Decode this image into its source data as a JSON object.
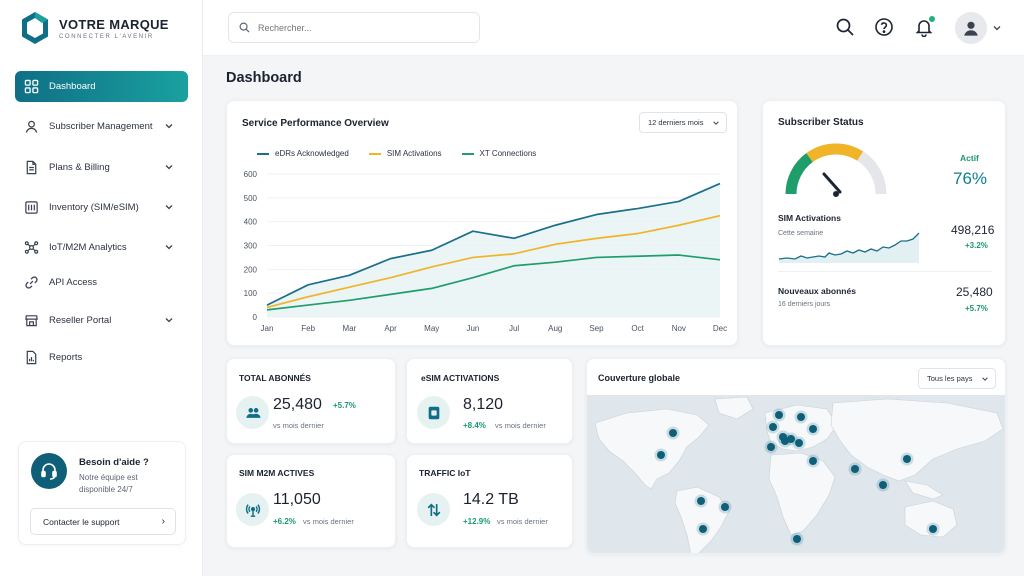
{
  "brand": {
    "name": "VOTRE MARQUE",
    "tagline": "CONNECTER L'AVENIR",
    "color": "#0f6f86"
  },
  "nav": {
    "items": [
      {
        "label": "Dashboard",
        "icon": "grid-icon",
        "active": true,
        "chevron": false
      },
      {
        "label": "Subscriber Management",
        "icon": "user-icon",
        "chevron": true
      },
      {
        "label": "Plans & Billing",
        "icon": "document-icon",
        "chevron": true
      },
      {
        "label": "Inventory (SIM/eSIM)",
        "icon": "sim-card-icon",
        "chevron": true
      },
      {
        "label": "IoT/M2M Analytics",
        "icon": "network-icon",
        "chevron": true
      },
      {
        "label": "API Access",
        "icon": "link-icon",
        "chevron": false
      },
      {
        "label": "Reseller Portal",
        "icon": "storefront-icon",
        "chevron": true
      },
      {
        "label": "Reports",
        "icon": "report-icon",
        "chevron": false
      }
    ]
  },
  "help": {
    "title": "Besoin d'aide ?",
    "text": "Notre équipe est disponible 24/7",
    "button": "Contacter le support"
  },
  "search": {
    "placeholder": "Rechercher..."
  },
  "page": {
    "title": "Dashboard"
  },
  "performance": {
    "title": "Service Performance Overview",
    "period": "12 derniers mois",
    "chart_data": {
      "type": "line",
      "title": "",
      "categories": [
        "Jan",
        "Feb",
        "Mar",
        "Apr",
        "May",
        "Jun",
        "Jul",
        "Aug",
        "Sep",
        "Oct",
        "Nov",
        "Dec"
      ],
      "ylim": [
        0,
        600
      ],
      "yticks": [
        0,
        100,
        200,
        300,
        400,
        500,
        600
      ],
      "grid": true,
      "legend": "top",
      "series": [
        {
          "name": "eDRs Acknowledged",
          "color": "#1a6f8a",
          "values": [
            50,
            135,
            175,
            245,
            280,
            360,
            330,
            385,
            430,
            455,
            485,
            560
          ]
        },
        {
          "name": "SIM Activations",
          "color": "#f0b429",
          "values": [
            40,
            85,
            125,
            165,
            210,
            250,
            265,
            305,
            330,
            350,
            385,
            425
          ]
        },
        {
          "name": "XT Connections",
          "color": "#1f9d6b",
          "values": [
            30,
            50,
            70,
            95,
            120,
            165,
            215,
            230,
            250,
            255,
            260,
            240
          ]
        }
      ]
    }
  },
  "subscriber_status": {
    "title": "Subscriber Status",
    "active_label": "Actif",
    "active_value": "76%",
    "gauge_fraction": 0.76,
    "sim": {
      "label": "SIM Activations",
      "sub": "Cette semaine",
      "value": "498,216",
      "delta": "+3.2%"
    },
    "new_subs": {
      "label": "Nouveaux abonnés",
      "sub": "16 derniers jours",
      "value": "25,480",
      "delta": "+5.7%"
    }
  },
  "stats": [
    {
      "label": "TOTAL ABONNÉS",
      "value": "25,480",
      "delta": "+5.7%",
      "sub": "vs mois dernier",
      "icon": "users-icon"
    },
    {
      "label": "eSIM ACTIVATIONS",
      "value": "8,120",
      "delta": "+8.4%",
      "sub": "vs mois dernier",
      "icon": "esim-icon"
    },
    {
      "label": "SIM M2M ACTIVES",
      "value": "11,050",
      "delta": "+6.2%",
      "sub": "vs mois dernier",
      "icon": "antenna-icon"
    },
    {
      "label": "TRAFFIC IoT",
      "value": "14.2 TB",
      "delta": "+12.9%",
      "sub": "vs mois dernier",
      "icon": "transfer-icon"
    }
  ],
  "coverage": {
    "title": "Couverture globale",
    "filter": "Tous les pays"
  }
}
